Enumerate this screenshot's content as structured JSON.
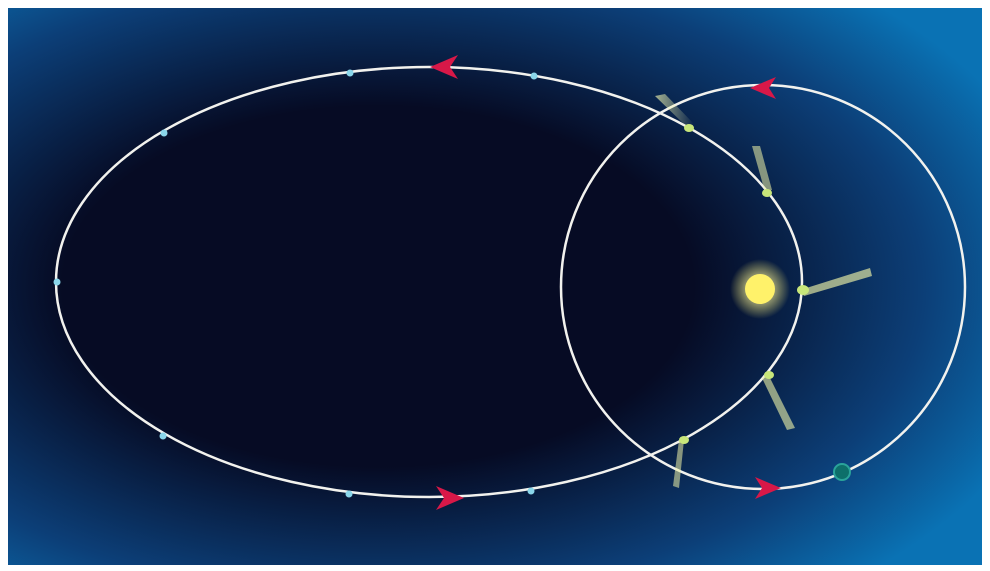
{
  "diagram": {
    "kind": "comet-orbits-around-sun",
    "colors": {
      "page_background": "#ffffff",
      "space_outer": "#0a72b4",
      "space_mid": "#0c3f78",
      "space_inner": "#060b24",
      "orbit_line": "#f2f2ee",
      "direction_arrow": "#d81848",
      "sun": "#fff26a",
      "comet_head": "#c8e67a",
      "comet_tail": "#e6f08c",
      "orbit_marker": "#8ad6ea",
      "planet": "#0d6f6a"
    },
    "labels": []
  }
}
